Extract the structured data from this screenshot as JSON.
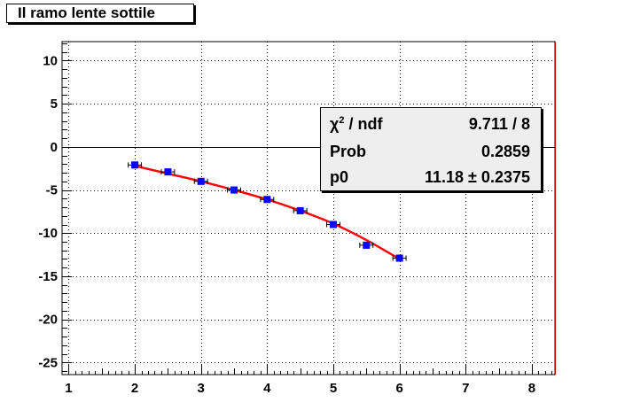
{
  "chart_data": {
    "type": "scatter",
    "title": "Il ramo lente sottile",
    "xlim": [
      0.9,
      8.35
    ],
    "ylim": [
      -26.4,
      12.2
    ],
    "xticks": [
      1,
      2,
      3,
      4,
      5,
      6,
      7,
      8
    ],
    "yticks": [
      10,
      5,
      0,
      -5,
      -10,
      -15,
      -20,
      -25
    ],
    "grid": true,
    "points": {
      "x": [
        2,
        2.5,
        3,
        3.5,
        4,
        4.5,
        5,
        5.5,
        6
      ],
      "y": [
        -2.1,
        -2.9,
        -4.0,
        -5.0,
        -6.1,
        -7.4,
        -9.0,
        -11.4,
        -12.9
      ],
      "xerr": [
        0.1,
        0.1,
        0.1,
        0.1,
        0.1,
        0.1,
        0.1,
        0.1,
        0.1
      ],
      "color": "#0000ff"
    },
    "fit": {
      "color": "#ff0000",
      "x": [
        2,
        2.5,
        3,
        3.5,
        4,
        4.5,
        5,
        5.5,
        6
      ],
      "y": [
        -2.2,
        -3.1,
        -4.0,
        -5.0,
        -6.1,
        -7.4,
        -8.9,
        -10.8,
        -13.0
      ]
    },
    "stats": {
      "legend_placement": "top-right",
      "rows": [
        {
          "label_main": "χ",
          "label_sup": "2",
          "label_rest": " / ndf",
          "value": "9.711 / 8"
        },
        {
          "label_main": "Prob",
          "label_sup": "",
          "label_rest": "",
          "value": "0.2859"
        },
        {
          "label_main": "p0",
          "label_sup": "",
          "label_rest": "",
          "value": "11.18 ± 0.2375"
        }
      ]
    }
  }
}
